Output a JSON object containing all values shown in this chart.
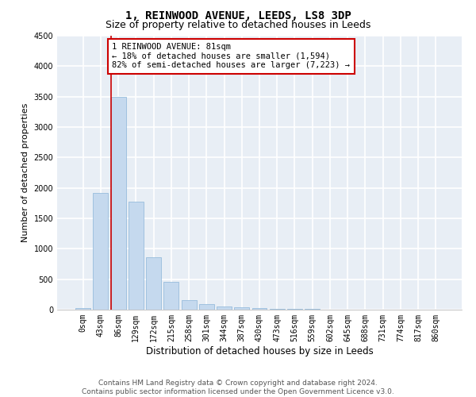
{
  "title1": "1, REINWOOD AVENUE, LEEDS, LS8 3DP",
  "title2": "Size of property relative to detached houses in Leeds",
  "xlabel": "Distribution of detached houses by size in Leeds",
  "ylabel": "Number of detached properties",
  "bar_color": "#c5d9ee",
  "bar_edge_color": "#8ab4d8",
  "categories": [
    "0sqm",
    "43sqm",
    "86sqm",
    "129sqm",
    "172sqm",
    "215sqm",
    "258sqm",
    "301sqm",
    "344sqm",
    "387sqm",
    "430sqm",
    "473sqm",
    "516sqm",
    "559sqm",
    "602sqm",
    "645sqm",
    "688sqm",
    "731sqm",
    "774sqm",
    "817sqm",
    "860sqm"
  ],
  "values": [
    25,
    1920,
    3500,
    1780,
    860,
    460,
    160,
    90,
    50,
    38,
    28,
    18,
    12,
    8,
    6,
    5,
    4,
    3,
    2,
    1,
    0
  ],
  "ylim": [
    0,
    4500
  ],
  "yticks": [
    0,
    500,
    1000,
    1500,
    2000,
    2500,
    3000,
    3500,
    4000,
    4500
  ],
  "annotation_box_text": "1 REINWOOD AVENUE: 81sqm\n← 18% of detached houses are smaller (1,594)\n82% of semi-detached houses are larger (7,223) →",
  "box_color": "white",
  "box_edge_color": "#cc0000",
  "vline_color": "#cc0000",
  "vline_x_index": 2,
  "footer1": "Contains HM Land Registry data © Crown copyright and database right 2024.",
  "footer2": "Contains public sector information licensed under the Open Government Licence v3.0.",
  "background_color": "#e8eef5",
  "grid_color": "white",
  "title1_fontsize": 10,
  "title2_fontsize": 9,
  "xlabel_fontsize": 8.5,
  "ylabel_fontsize": 8,
  "tick_fontsize": 7,
  "annotation_fontsize": 7.5,
  "footer_fontsize": 6.5
}
